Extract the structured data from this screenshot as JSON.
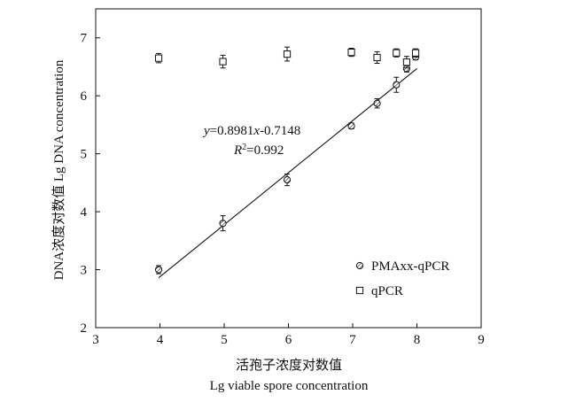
{
  "chart_data": {
    "type": "scatter",
    "xlabel_cn": "活孢子浓度对数值",
    "xlabel_en": "Lg viable spore concentration",
    "ylabel": "DNA浓度对数值 Lg DNA concentration",
    "xlim": [
      3,
      9
    ],
    "ylim": [
      2,
      7.5
    ],
    "x_ticks": [
      3,
      4,
      5,
      6,
      7,
      8,
      9
    ],
    "y_ticks": [
      2,
      3,
      4,
      5,
      6,
      7
    ],
    "grid": false,
    "legend_position": "bottom-right",
    "series": [
      {
        "name": "PMAxx-qPCR",
        "marker": "hatched-circle",
        "points": [
          {
            "x": 3.98,
            "y": 3.0,
            "err": 0.07
          },
          {
            "x": 4.98,
            "y": 3.8,
            "err": 0.13
          },
          {
            "x": 5.98,
            "y": 4.55,
            "err": 0.1
          },
          {
            "x": 6.98,
            "y": 5.48,
            "err": 0.05
          },
          {
            "x": 7.38,
            "y": 5.87,
            "err": 0.08
          },
          {
            "x": 7.68,
            "y": 6.19,
            "err": 0.13
          },
          {
            "x": 7.84,
            "y": 6.47,
            "err": 0.06
          },
          {
            "x": 7.98,
            "y": 6.67,
            "err": 0.05
          }
        ]
      },
      {
        "name": "qPCR",
        "marker": "open-square",
        "points": [
          {
            "x": 3.98,
            "y": 6.65,
            "err": 0.08
          },
          {
            "x": 4.98,
            "y": 6.59,
            "err": 0.11
          },
          {
            "x": 5.98,
            "y": 6.72,
            "err": 0.12
          },
          {
            "x": 6.98,
            "y": 6.75,
            "err": 0.07
          },
          {
            "x": 7.38,
            "y": 6.66,
            "err": 0.1
          },
          {
            "x": 7.68,
            "y": 6.74,
            "err": 0.07
          },
          {
            "x": 7.84,
            "y": 6.58,
            "err": 0.1
          },
          {
            "x": 7.98,
            "y": 6.74,
            "err": 0.07
          }
        ]
      }
    ],
    "fit_line": {
      "x_start": 3.98,
      "x_end": 8.0,
      "slope": 0.8981,
      "intercept": -0.7148
    },
    "equation": {
      "y_var": "y",
      "lhs_rest": "=0.8981",
      "x_var": "x",
      "rhs_rest": "-0.7148",
      "r_var": "R",
      "r_sup": "2",
      "r_rest": "=0.992"
    }
  }
}
